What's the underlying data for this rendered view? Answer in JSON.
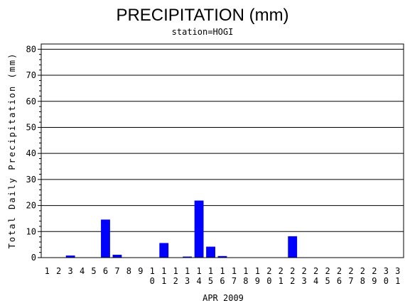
{
  "chart_data": {
    "type": "bar",
    "title": "PRECIPITATION (mm)",
    "subtitle": "station=HOGI",
    "xlabel": "APR 2009",
    "ylabel": "Total Daily Precipitation (mm)",
    "ylim": [
      0,
      82
    ],
    "yticks": [
      0,
      10,
      20,
      30,
      40,
      50,
      60,
      70,
      80
    ],
    "grid": true,
    "bar_color": "#0000ff",
    "categories": [
      "1",
      "2",
      "3",
      "4",
      "5",
      "6",
      "7",
      "8",
      "9",
      "10",
      "11",
      "12",
      "13",
      "14",
      "15",
      "16",
      "17",
      "18",
      "19",
      "20",
      "21",
      "22",
      "23",
      "24",
      "25",
      "26",
      "27",
      "28",
      "29",
      "30",
      "31"
    ],
    "values": [
      0,
      0,
      0.8,
      0,
      0,
      14.6,
      1.1,
      0,
      0,
      0,
      5.6,
      0,
      0.4,
      21.9,
      4.2,
      0.6,
      0,
      0,
      0,
      0,
      0,
      8.2,
      0,
      0,
      0,
      0,
      0,
      0,
      0,
      0,
      0
    ]
  }
}
